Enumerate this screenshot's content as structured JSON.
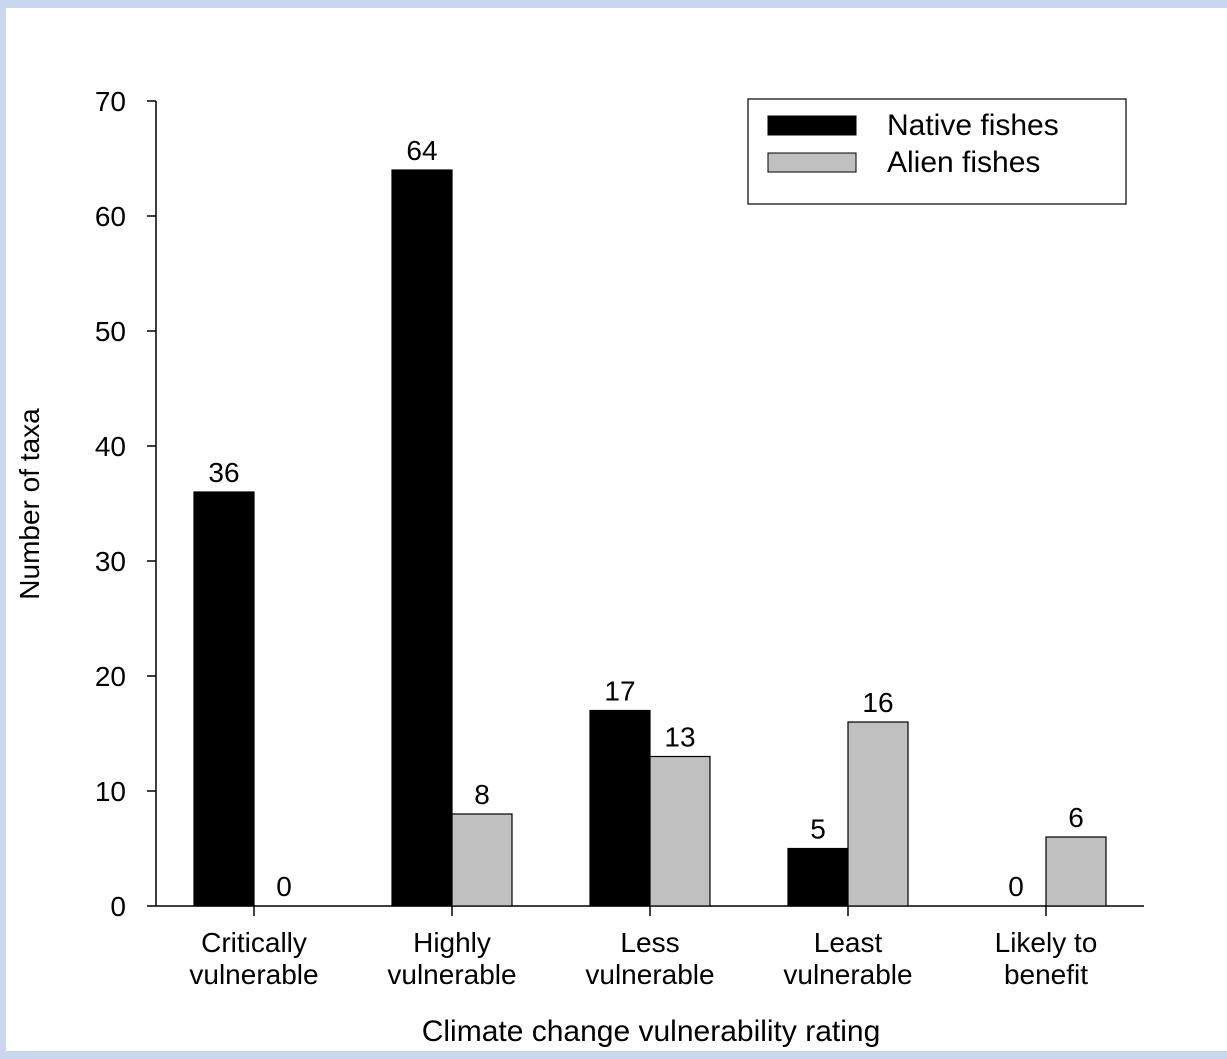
{
  "chart_data": {
    "type": "bar",
    "ylabel": "Number of taxa",
    "xlabel": "Climate change vulnerability rating",
    "ylim": [
      0,
      70
    ],
    "yticks": [
      0,
      10,
      20,
      30,
      40,
      50,
      60,
      70
    ],
    "categories": [
      [
        "Critically",
        "vulnerable"
      ],
      [
        "Highly",
        "vulnerable"
      ],
      [
        "Less",
        "vulnerable"
      ],
      [
        "Least",
        "vulnerable"
      ],
      [
        "Likely to",
        "benefit"
      ]
    ],
    "series": [
      {
        "name": "Native fishes",
        "color": "#000000",
        "values": [
          36,
          64,
          17,
          5,
          0
        ]
      },
      {
        "name": "Alien fishes",
        "color": "#c0c0c0",
        "values": [
          0,
          8,
          13,
          16,
          6
        ]
      }
    ],
    "data_labels": true,
    "legend_position": "top-right",
    "grid": false
  }
}
